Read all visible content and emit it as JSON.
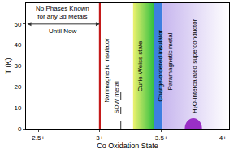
{
  "chart_data": {
    "type": "phase_diagram",
    "x_label": "Co Oxidation State",
    "y_label": "T (K)",
    "xlim": [
      2.4,
      4.05
    ],
    "xticks": [
      {
        "value": 2.5,
        "label": "2.5+"
      },
      {
        "value": 3.0,
        "label": "3+"
      },
      {
        "value": 3.5,
        "label": "3.5+"
      },
      {
        "value": 4.0,
        "label": "4+"
      }
    ],
    "ylim": [
      0,
      60
    ],
    "yticks": [
      0,
      10,
      20,
      30,
      40,
      50
    ],
    "regions": [
      {
        "name": "Curie-Weiss state",
        "x": [
          3.27,
          3.44
        ],
        "color": "#2fbf3f"
      },
      {
        "name": "Charge-ordered insulator",
        "x": [
          3.44,
          3.51
        ],
        "color": "#3d7fe0"
      },
      {
        "name": "Paramagnetic metal",
        "x": [
          3.51,
          4.05
        ],
        "color": "#c7b6ee"
      }
    ],
    "boundaries": [
      {
        "name": "Nonmagnetic insulator",
        "x": 3.0,
        "y": [
          0,
          60
        ],
        "color": "#c41a1a",
        "line_style": "solid"
      },
      {
        "name": "SDW metal",
        "x": 3.17,
        "y": [
          0,
          20
        ],
        "color": "#555555",
        "line_style": "dashed"
      }
    ],
    "dome": {
      "name": "H₂O-intercalated superconductor",
      "x": [
        3.69,
        3.83
      ],
      "peak": 5,
      "color": "#9a2fc6"
    },
    "arrow": {
      "x": [
        2.4,
        3.0
      ],
      "y": 50
    },
    "annotations": [
      {
        "text": [
          "No Phases Known",
          "for any 3d Metals"
        ],
        "x": 2.7,
        "y": 55.5,
        "orientation": "horizontal"
      },
      {
        "text": [
          "Until Now"
        ],
        "x": 2.7,
        "y": 46.5,
        "orientation": "horizontal"
      },
      {
        "text": [
          "Nonmagnetic insulator"
        ],
        "x": 3.06,
        "y": 28,
        "orientation": "vertical"
      },
      {
        "text": [
          "SDW metal"
        ],
        "x": 3.135,
        "y": 15,
        "orientation": "vertical"
      },
      {
        "text": [
          "Curie-Weiss state"
        ],
        "x": 3.33,
        "y": 30,
        "orientation": "vertical"
      },
      {
        "text": [
          "Charge-ordered insulator"
        ],
        "x": 3.49,
        "y": 30,
        "orientation": "vertical"
      },
      {
        "text": [
          "Paramagnetic metal"
        ],
        "x": 3.57,
        "y": 32,
        "orientation": "vertical"
      },
      {
        "text": [
          "H₂O-intercalated superconductor"
        ],
        "x": 3.77,
        "y": 30,
        "orientation": "vertical"
      }
    ]
  }
}
